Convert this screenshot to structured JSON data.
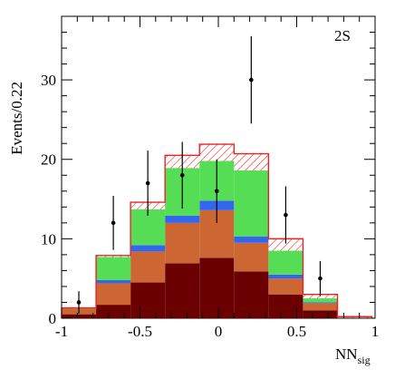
{
  "chart_data": {
    "type": "bar",
    "panel_label": "2S",
    "xlabel": "NN",
    "xlabel_sub": "sig",
    "ylabel": "Events/0.22",
    "xlim": [
      -1,
      1
    ],
    "ylim": [
      0,
      38
    ],
    "x_ticks": [
      "-1",
      "-0.5",
      "0",
      "0.5",
      "1"
    ],
    "y_ticks": [
      "0",
      "10",
      "20",
      "30"
    ],
    "bin_edges": [
      -1.0,
      -0.78,
      -0.56,
      -0.34,
      -0.12,
      0.1,
      0.32,
      0.54,
      0.76,
      0.98
    ],
    "stack": [
      {
        "color": "#6b0000",
        "values": [
          0.5,
          1.7,
          4.5,
          6.9,
          7.6,
          5.9,
          3.0,
          1.0,
          0.0
        ]
      },
      {
        "color": "#cc6633",
        "values": [
          0.7,
          2.7,
          3.9,
          5.1,
          6.0,
          3.6,
          2.0,
          0.9,
          0.0
        ]
      },
      {
        "color": "#3366ee",
        "values": [
          0.0,
          0.4,
          0.8,
          0.9,
          1.2,
          0.8,
          0.5,
          0.1,
          0.0
        ]
      },
      {
        "color": "#55dd55",
        "values": [
          0.1,
          2.9,
          4.5,
          6.0,
          5.0,
          8.3,
          3.0,
          0.5,
          0.0
        ]
      }
    ],
    "hatched_total": [
      1.3,
      7.9,
      14.6,
      20.5,
      21.9,
      20.7,
      10.0,
      3.0,
      0.2
    ],
    "hatch_color": "#ee2222",
    "data_points": [
      {
        "x": -0.89,
        "y": 2,
        "err": 1.4
      },
      {
        "x": -0.67,
        "y": 12,
        "err": 3.4
      },
      {
        "x": -0.45,
        "y": 17,
        "err": 4.1
      },
      {
        "x": -0.23,
        "y": 18,
        "err": 4.2
      },
      {
        "x": -0.01,
        "y": 16,
        "err": 4.0
      },
      {
        "x": 0.21,
        "y": 30,
        "err": 5.5
      },
      {
        "x": 0.43,
        "y": 13,
        "err": 3.6
      },
      {
        "x": 0.65,
        "y": 5,
        "err": 2.2
      }
    ]
  }
}
